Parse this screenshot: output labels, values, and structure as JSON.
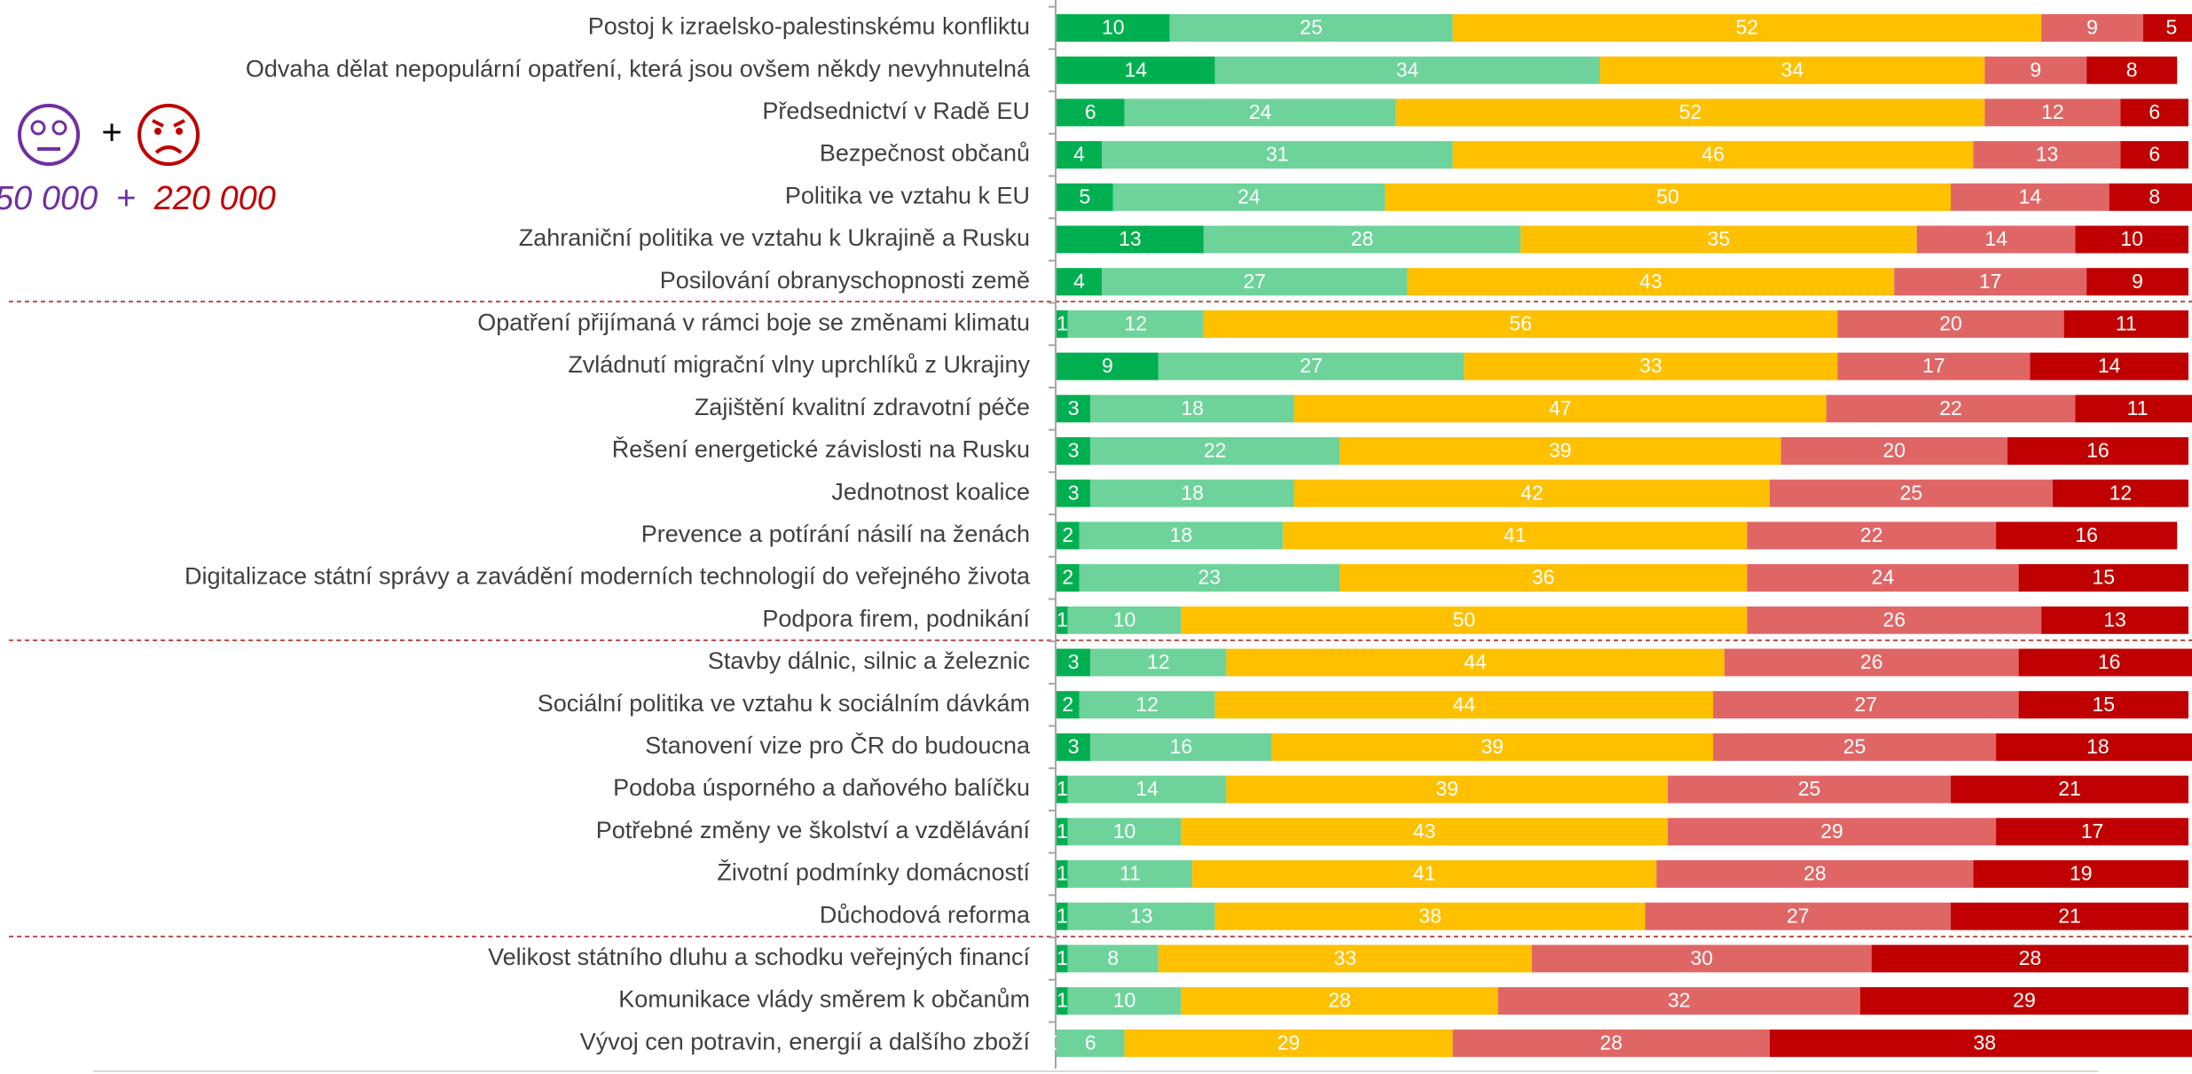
{
  "chart_data": {
    "type": "stacked-barh",
    "annotations": {
      "plus_icons": "+",
      "count_a": "50 000",
      "plus_counts": "+",
      "count_b": "220 000"
    },
    "categories": [
      "Postoj k izraelsko-palestinskému konfliktu",
      "Odvaha dělat nepopulární opatření, která jsou ovšem někdy nevyhnutelná",
      "Předsednictví v Radě EU",
      "Bezpečnost občanů",
      "Politika ve vztahu k EU",
      "Zahraniční politika ve vztahu k Ukrajině a Rusku",
      "Posilování obranyschopnosti země",
      "Opatření přijímaná v rámci boje se změnami klimatu",
      "Zvládnutí migrační vlny uprchlíků z Ukrajiny",
      "Zajištění kvalitní zdravotní péče",
      "Řešení energetické závislosti na Rusku",
      "Jednotnost koalice",
      "Prevence a potírání násilí na ženách",
      "Digitalizace státní správy a zavádění moderních technologií do veřejného života",
      "Podpora firem, podnikání",
      "Stavby dálnic, silnic a železnic",
      "Sociální politika ve vztahu k sociálním dávkám",
      "Stanovení vize pro ČR do budoucna",
      "Podoba úsporného a daňového balíčku",
      "Potřebné změny ve školství a vzdělávání",
      "Životní podmínky domácností",
      "Důchodová reforma",
      "Velikost státního dluhu a schodku veřejných financí",
      "Komunikace vlády směrem k občanům",
      "Vývoj cen potravin, energií a dalšího zboží"
    ],
    "series": [
      {
        "color": "#00b050",
        "values": [
          10,
          14,
          6,
          4,
          5,
          13,
          4,
          1,
          9,
          3,
          3,
          3,
          2,
          2,
          1,
          3,
          2,
          3,
          1,
          1,
          1,
          1,
          1,
          1,
          0
        ]
      },
      {
        "color": "#6dd39a",
        "values": [
          25,
          34,
          24,
          31,
          24,
          28,
          27,
          12,
          27,
          18,
          22,
          18,
          18,
          23,
          10,
          12,
          12,
          16,
          14,
          10,
          11,
          13,
          8,
          10,
          6
        ]
      },
      {
        "color": "#ffc000",
        "values": [
          52,
          34,
          52,
          46,
          50,
          35,
          43,
          56,
          33,
          47,
          39,
          42,
          41,
          36,
          50,
          44,
          44,
          39,
          39,
          43,
          41,
          38,
          33,
          28,
          29
        ]
      },
      {
        "color": "#e06666",
        "values": [
          9,
          9,
          12,
          13,
          14,
          14,
          17,
          20,
          17,
          22,
          20,
          25,
          22,
          24,
          26,
          26,
          27,
          25,
          25,
          29,
          28,
          27,
          30,
          32,
          28
        ]
      },
      {
        "color": "#c00000",
        "values": [
          5,
          8,
          6,
          6,
          8,
          10,
          9,
          11,
          14,
          11,
          16,
          12,
          16,
          15,
          13,
          16,
          15,
          18,
          21,
          17,
          19,
          21,
          28,
          29,
          38
        ]
      }
    ],
    "xlim": [
      0,
      100
    ]
  }
}
